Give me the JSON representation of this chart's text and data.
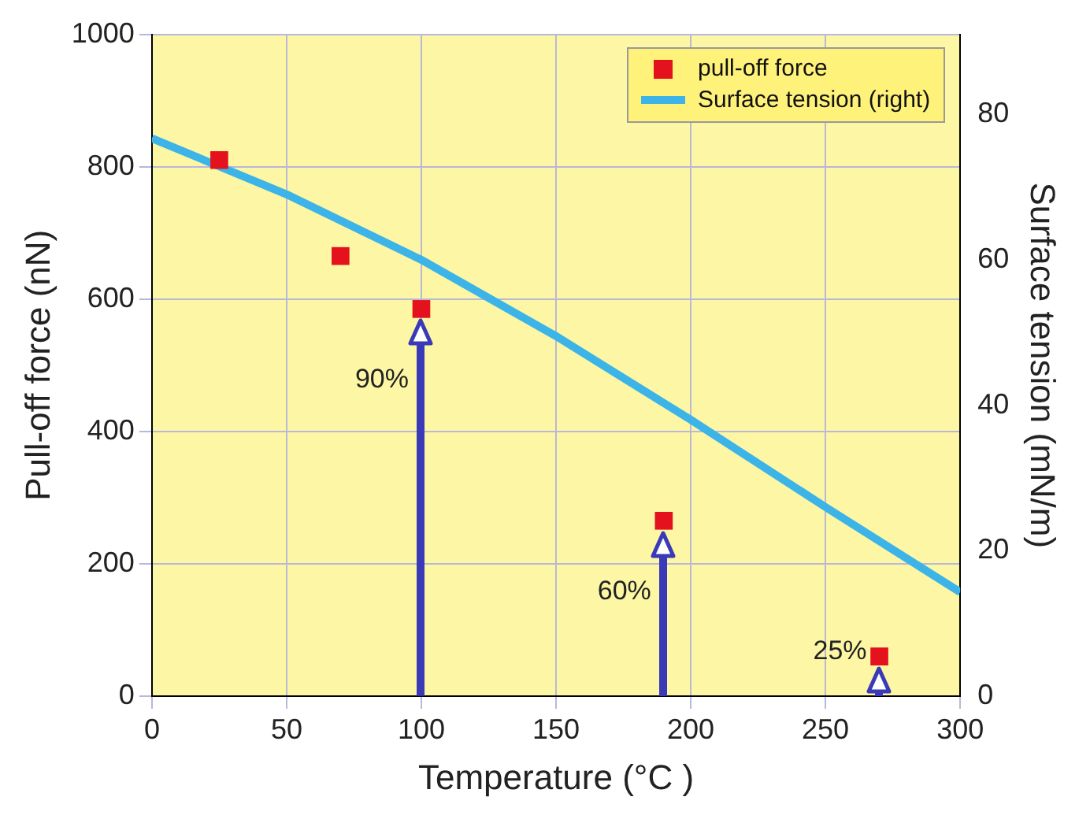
{
  "chart_data": {
    "type": "scatter",
    "xlabel": "Temperature (°C )",
    "ylabel": "Pull-off force (nN)",
    "y2label": "Surface tension (mN/m)",
    "xlim": [
      0,
      300
    ],
    "xticks": [
      0,
      50,
      100,
      150,
      200,
      250,
      300
    ],
    "ylim": [
      0,
      1000
    ],
    "yticks": [
      0,
      200,
      400,
      600,
      800,
      1000
    ],
    "y2lim": [
      0,
      91
    ],
    "y2ticks": [
      0,
      20,
      40,
      60,
      80
    ],
    "series": [
      {
        "name": "pull-off force",
        "color": "#e3121c",
        "marker": "square",
        "x": [
          25,
          70,
          100,
          190,
          270
        ],
        "values": [
          810,
          665,
          585,
          265,
          60
        ]
      },
      {
        "name": "Surface tension (right)",
        "type": "line",
        "axis": "y2",
        "color": "#3cb4e8",
        "marker": "none",
        "line_style": "solid",
        "x": [
          0,
          50,
          100,
          150,
          200,
          250,
          300
        ],
        "values": [
          76.7,
          69,
          60,
          49.5,
          38,
          26,
          14.3
        ]
      }
    ],
    "annotations": [
      {
        "text": "90%",
        "x": 100,
        "y": 585
      },
      {
        "text": "60%",
        "x": 190,
        "y": 265
      },
      {
        "text": "25%",
        "x": 270,
        "y": 60
      }
    ],
    "grid": true,
    "legend": "top right"
  }
}
